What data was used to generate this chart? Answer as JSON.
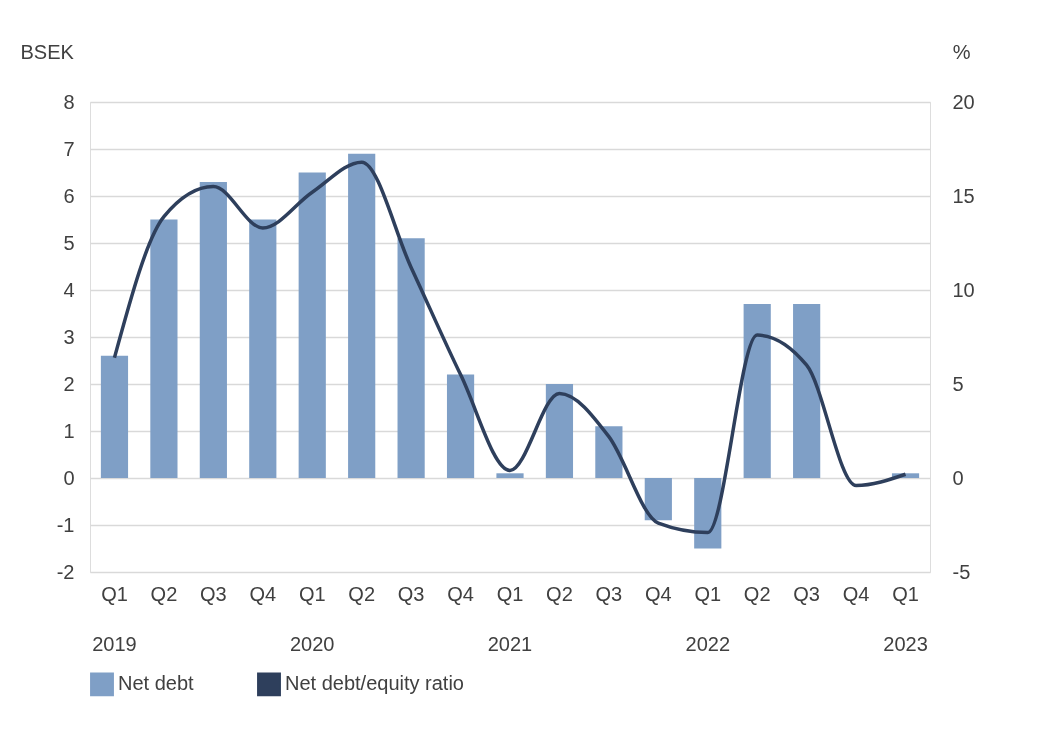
{
  "chart_data": {
    "type": "bar",
    "categories": [
      "Q1 2019",
      "Q2",
      "Q3",
      "Q4",
      "Q1 2020",
      "Q2",
      "Q3",
      "Q4",
      "Q1 2021",
      "Q2",
      "Q3",
      "Q4",
      "Q1 2022",
      "Q2",
      "Q3",
      "Q4",
      "Q1 2023"
    ],
    "ylabel": "BSEK",
    "y2label": "%",
    "ylim": [
      -2,
      8
    ],
    "yticks": [
      -2,
      -1,
      0,
      1,
      2,
      3,
      4,
      5,
      6,
      7,
      8
    ],
    "y2lim": [
      -5,
      20
    ],
    "y2ticks": [
      -5,
      0,
      5,
      10,
      15,
      20
    ],
    "grid": "y",
    "legend": "bottom",
    "series": [
      {
        "name": "Net debt",
        "color": "#7f9fc6",
        "values": [
          2.6,
          5.5,
          6.3,
          5.5,
          6.5,
          6.9,
          5.1,
          2.2,
          0.1,
          2.0,
          1.1,
          -0.9,
          -1.5,
          3.7,
          3.7,
          0.0,
          0.1
        ]
      },
      {
        "name": "Net debt/equity ratio",
        "type": "line",
        "axis": "y2",
        "color": "#2e3f5c",
        "line_style": "solid",
        "marker": "none",
        "values": [
          6.4,
          13.9,
          15.5,
          13.3,
          15.2,
          16.8,
          11.2,
          5.5,
          0.4,
          4.5,
          2.2,
          -2.4,
          -2.9,
          7.6,
          6.0,
          -0.4,
          0.2
        ]
      }
    ]
  }
}
